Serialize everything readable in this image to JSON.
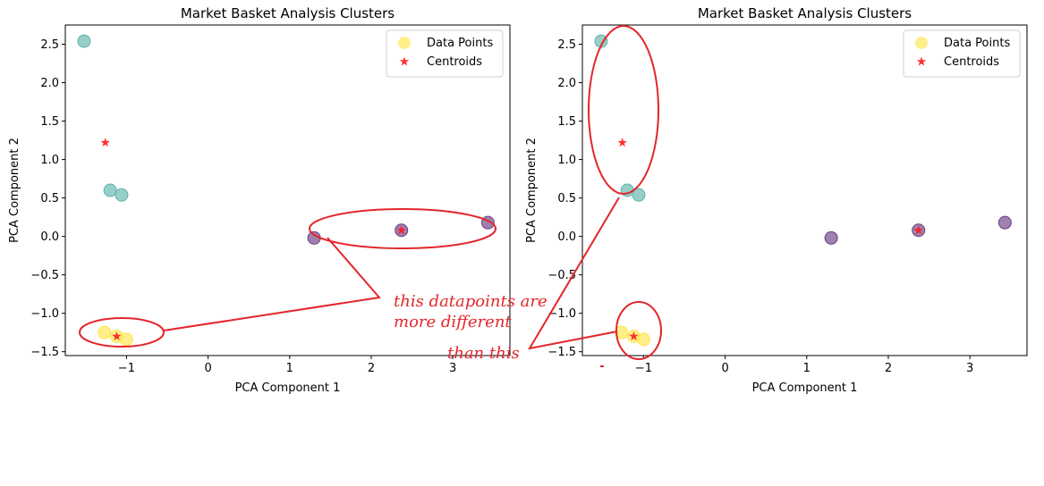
{
  "chart_data": [
    {
      "type": "scatter",
      "title": "Market Basket Analysis Clusters",
      "xlabel": "PCA Component 1",
      "ylabel": "PCA Component 2",
      "xlim": [
        -1.75,
        3.7
      ],
      "ylim": [
        -1.55,
        2.75
      ],
      "xticks": [
        -1,
        0,
        1,
        2,
        3
      ],
      "yticks": [
        -1.5,
        -1.0,
        -0.5,
        0.0,
        0.5,
        1.0,
        1.5,
        2.0,
        2.5
      ],
      "legend": {
        "position": "top-right",
        "entries": [
          "Data Points",
          "Centroids"
        ]
      },
      "colors": {
        "teal": "#5fb3ad",
        "purple": "#6a3d82",
        "yellow": "#fde74c",
        "centroid": "#ff1a1a"
      },
      "points": [
        {
          "x": -1.52,
          "y": 2.54,
          "cluster": "teal"
        },
        {
          "x": -1.2,
          "y": 0.6,
          "cluster": "teal"
        },
        {
          "x": -1.06,
          "y": 0.54,
          "cluster": "teal"
        },
        {
          "x": 1.3,
          "y": -0.02,
          "cluster": "purple"
        },
        {
          "x": 2.37,
          "y": 0.08,
          "cluster": "purple"
        },
        {
          "x": 3.43,
          "y": 0.18,
          "cluster": "purple"
        },
        {
          "x": -1.27,
          "y": -1.25,
          "cluster": "yellow"
        },
        {
          "x": -1.12,
          "y": -1.3,
          "cluster": "yellow"
        },
        {
          "x": -1.0,
          "y": -1.34,
          "cluster": "yellow"
        }
      ],
      "centroids": [
        {
          "x": -1.26,
          "y": 1.22
        },
        {
          "x": 2.37,
          "y": 0.08
        },
        {
          "x": -1.12,
          "y": -1.3
        }
      ]
    },
    {
      "type": "scatter",
      "title": "Market Basket Analysis Clusters",
      "xlabel": "PCA Component 1",
      "ylabel": "PCA Component 2",
      "xlim": [
        -1.75,
        3.7
      ],
      "ylim": [
        -1.55,
        2.75
      ],
      "xticks": [
        -1,
        0,
        1,
        2,
        3
      ],
      "yticks": [
        -1.5,
        -1.0,
        -0.5,
        0.0,
        0.5,
        1.0,
        1.5,
        2.0,
        2.5
      ],
      "legend": {
        "position": "top-right",
        "entries": [
          "Data Points",
          "Centroids"
        ]
      },
      "colors": {
        "teal": "#5fb3ad",
        "purple": "#6a3d82",
        "yellow": "#fde74c",
        "centroid": "#ff1a1a"
      },
      "points": [
        {
          "x": -1.52,
          "y": 2.54,
          "cluster": "teal"
        },
        {
          "x": -1.2,
          "y": 0.6,
          "cluster": "teal"
        },
        {
          "x": -1.06,
          "y": 0.54,
          "cluster": "teal"
        },
        {
          "x": 1.3,
          "y": -0.02,
          "cluster": "purple"
        },
        {
          "x": 2.37,
          "y": 0.08,
          "cluster": "purple"
        },
        {
          "x": 3.43,
          "y": 0.18,
          "cluster": "purple"
        },
        {
          "x": -1.27,
          "y": -1.25,
          "cluster": "yellow"
        },
        {
          "x": -1.12,
          "y": -1.3,
          "cluster": "yellow"
        },
        {
          "x": -1.0,
          "y": -1.34,
          "cluster": "yellow"
        }
      ],
      "centroids": [
        {
          "x": -1.26,
          "y": 1.22
        },
        {
          "x": 2.37,
          "y": 0.08
        },
        {
          "x": -1.12,
          "y": -1.3
        }
      ]
    }
  ],
  "annotations": {
    "line1": "this datapoints are",
    "line2": "more different",
    "line3": "than this",
    "color": "#e3262b"
  }
}
